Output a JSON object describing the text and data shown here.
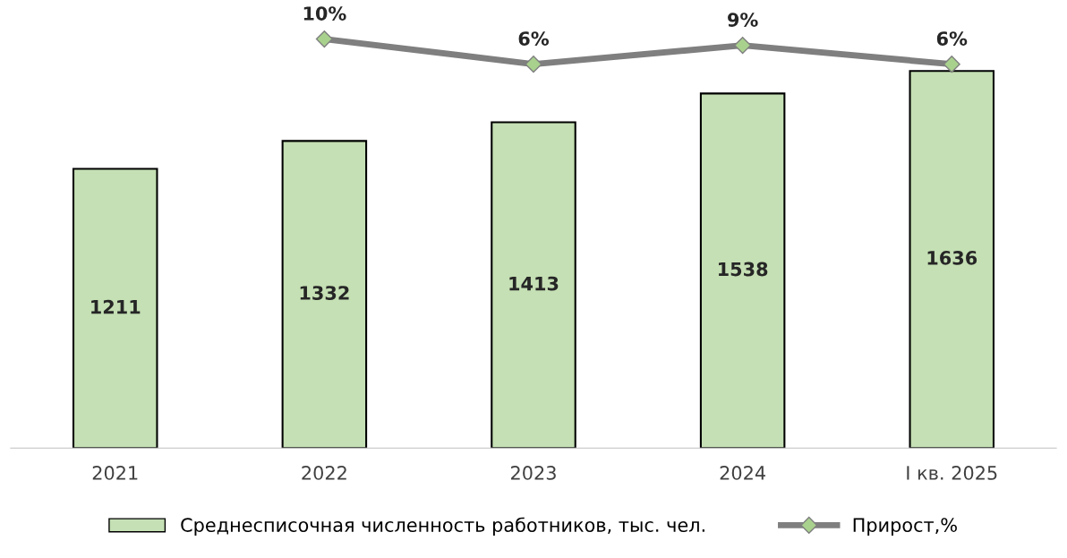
{
  "chart_data": [
    {
      "type": "bar",
      "categories": [
        "2021",
        "2022",
        "2023",
        "2024",
        "I кв. 2025"
      ],
      "series": [
        {
          "name": "Среднесписочная численность работников, тыс. чел.",
          "color": "#c5e0b4",
          "values": [
            1211,
            1332,
            1413,
            1538,
            1636
          ]
        }
      ],
      "data_labels": true,
      "tick_labels": "x",
      "grid": false,
      "legend": "bottom"
    },
    {
      "type": "line",
      "categories": [
        null,
        null,
        null,
        null,
        null
      ],
      "marker": "diamond",
      "tick_labels": false,
      "legend": "bottom",
      "series": [
        {
          "name": "Прирост,%",
          "color": "#7f7f7f",
          "values": [
            null,
            10,
            6,
            9,
            6
          ],
          "value_labels": [
            null,
            "10%",
            "6%",
            "9%",
            "6%"
          ]
        }
      ]
    }
  ]
}
